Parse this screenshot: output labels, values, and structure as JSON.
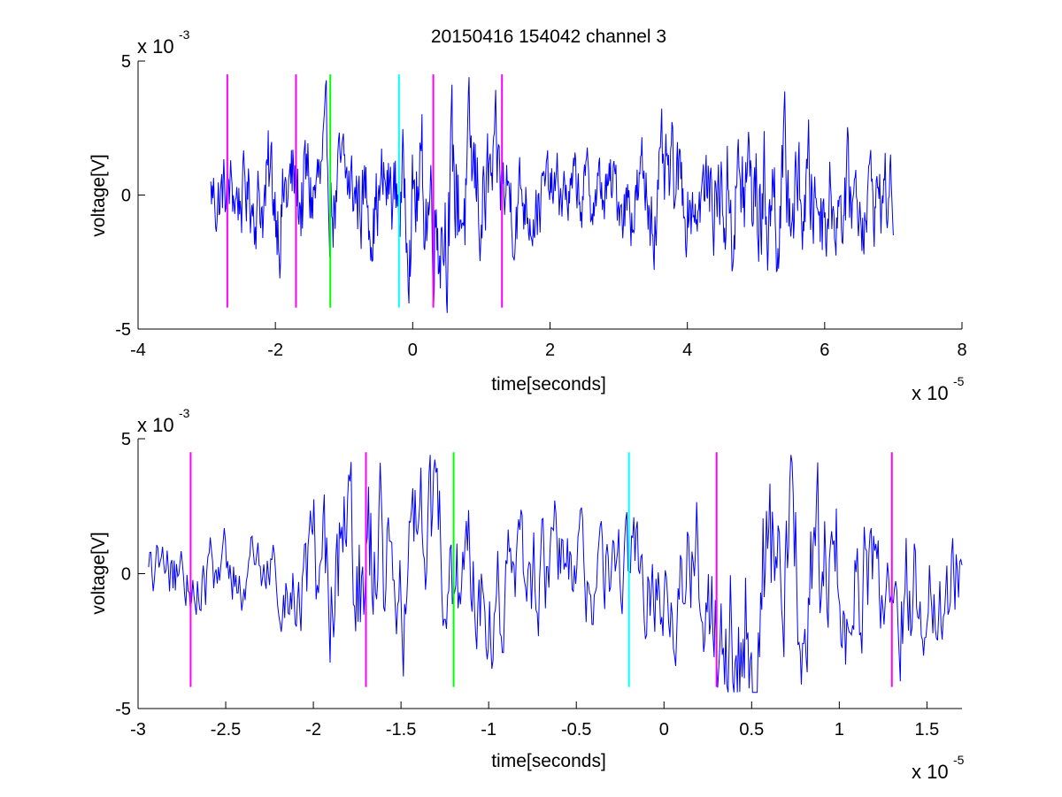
{
  "figure": {
    "title": "20150416 154042 channel 3",
    "background": "#ffffff"
  },
  "chart_data": [
    {
      "type": "line",
      "title": "20150416 154042 channel 3",
      "xlabel": "time[seconds]",
      "ylabel": "voltage[V]",
      "x_multiplier": "x 10",
      "x_exponent": "-5",
      "y_multiplier": "x 10",
      "y_exponent": "-3",
      "xlim": [
        -4,
        8
      ],
      "ylim": [
        -5,
        5
      ],
      "xticks": [
        -4,
        -2,
        0,
        2,
        4,
        6,
        8
      ],
      "xtick_labels": [
        "-4",
        "-2",
        "0",
        "2",
        "4",
        "6",
        "8"
      ],
      "yticks": [
        -5,
        0,
        5
      ],
      "ytick_labels": [
        "-5",
        "0",
        "5"
      ],
      "grid": false,
      "signal": {
        "color": "#0000ff",
        "x_start": -2.94,
        "x_end": 7.0,
        "samples": 1000,
        "seed": 1234,
        "extent_note_units": "x in 1e-5 s, y in 1e-3 V",
        "envelope": [
          [
            -2.94,
            1.0
          ],
          [
            -2.3,
            1.0
          ],
          [
            -2.1,
            1.4
          ],
          [
            -1.5,
            1.5
          ],
          [
            -1.0,
            1.2
          ],
          [
            -0.3,
            1.2
          ],
          [
            0.3,
            1.9
          ],
          [
            0.6,
            2.0
          ],
          [
            1.2,
            1.4
          ],
          [
            2.0,
            0.8
          ],
          [
            3.0,
            0.9
          ],
          [
            3.5,
            1.3
          ],
          [
            4.3,
            1.0
          ],
          [
            4.7,
            1.8
          ],
          [
            5.5,
            1.6
          ],
          [
            6.2,
            1.2
          ],
          [
            7.0,
            1.0
          ]
        ]
      },
      "markers": [
        {
          "x": -2.7,
          "color": "#ff00ff"
        },
        {
          "x": -1.7,
          "color": "#ff00ff"
        },
        {
          "x": -1.2,
          "color": "#00ff00"
        },
        {
          "x": -0.2,
          "color": "#00ffff"
        },
        {
          "x": 0.3,
          "color": "#ff00ff"
        },
        {
          "x": 1.3,
          "color": "#ff00ff"
        }
      ],
      "marker_range": [
        -4.2,
        4.5
      ]
    },
    {
      "type": "line",
      "xlabel": "time[seconds]",
      "ylabel": "voltage[V]",
      "x_multiplier": "x 10",
      "x_exponent": "-5",
      "y_multiplier": "x 10",
      "y_exponent": "-3",
      "xlim": [
        -3.0,
        1.7
      ],
      "ylim": [
        -5,
        5
      ],
      "xticks": [
        -3,
        -2.5,
        -2,
        -1.5,
        -1,
        -0.5,
        0,
        0.5,
        1,
        1.5
      ],
      "xtick_labels": [
        "-3",
        "-2.5",
        "-2",
        "-1.5",
        "-1",
        "-0.5",
        "0",
        "0.5",
        "1",
        "1.5"
      ],
      "yticks": [
        -5,
        0,
        5
      ],
      "ytick_labels": [
        "-5",
        "0",
        "5"
      ],
      "grid": false,
      "signal": {
        "color": "#0000ff",
        "x_start": -2.94,
        "x_end": 1.7,
        "samples": 700,
        "seed": 987,
        "extent_note_units": "x in 1e-5 s, y in 1e-3 V",
        "envelope": [
          [
            -2.94,
            0.9
          ],
          [
            -2.2,
            0.8
          ],
          [
            -2.0,
            1.6
          ],
          [
            -1.8,
            2.5
          ],
          [
            -1.4,
            2.1
          ],
          [
            -1.0,
            1.6
          ],
          [
            -0.5,
            1.4
          ],
          [
            0.0,
            1.3
          ],
          [
            0.3,
            2.2
          ],
          [
            0.5,
            3.0
          ],
          [
            0.8,
            2.3
          ],
          [
            1.2,
            1.8
          ],
          [
            1.7,
            1.5
          ]
        ]
      },
      "markers": [
        {
          "x": -2.7,
          "color": "#ff00ff"
        },
        {
          "x": -1.7,
          "color": "#ff00ff"
        },
        {
          "x": -1.2,
          "color": "#00ff00"
        },
        {
          "x": -0.2,
          "color": "#00ffff"
        },
        {
          "x": 0.3,
          "color": "#ff00ff"
        },
        {
          "x": 1.3,
          "color": "#ff00ff"
        }
      ],
      "marker_range": [
        -4.2,
        4.5
      ]
    }
  ]
}
